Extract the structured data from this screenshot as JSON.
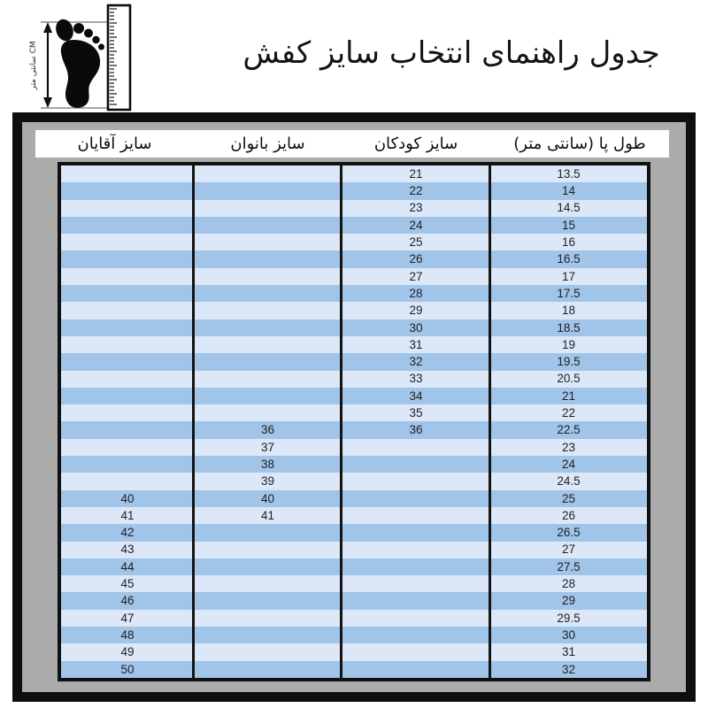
{
  "header": {
    "title": "جدول راهنمای انتخاب سایز کفش"
  },
  "icon": {
    "name": "foot-measure-icon",
    "measure_label": "CM سانتی متر"
  },
  "colors": {
    "row_light": "#dce8f8",
    "row_dark": "#a1c4e9",
    "frame_bg": "#ababab",
    "border": "#111111",
    "cell_text": "#1f1f1f"
  },
  "chart_data": {
    "type": "table",
    "title": "جدول راهنمای انتخاب سایز کفش",
    "columns": [
      "طول پا (سانتی متر)",
      "سایز کودکان",
      "سایز بانوان",
      "سایز آقایان"
    ],
    "column_keys": [
      "foot_length_cm",
      "children_size",
      "women_size",
      "men_size"
    ],
    "layout_hints": {
      "direction": "rtl",
      "stripes": "alternating",
      "first_row": "light"
    },
    "rows": [
      [
        "13.5",
        "21",
        "",
        ""
      ],
      [
        "14",
        "22",
        "",
        ""
      ],
      [
        "14.5",
        "23",
        "",
        ""
      ],
      [
        "15",
        "24",
        "",
        ""
      ],
      [
        "16",
        "25",
        "",
        ""
      ],
      [
        "16.5",
        "26",
        "",
        ""
      ],
      [
        "17",
        "27",
        "",
        ""
      ],
      [
        "17.5",
        "28",
        "",
        ""
      ],
      [
        "18",
        "29",
        "",
        ""
      ],
      [
        "18.5",
        "30",
        "",
        ""
      ],
      [
        "19",
        "31",
        "",
        ""
      ],
      [
        "19.5",
        "32",
        "",
        ""
      ],
      [
        "20.5",
        "33",
        "",
        ""
      ],
      [
        "21",
        "34",
        "",
        ""
      ],
      [
        "22",
        "35",
        "",
        ""
      ],
      [
        "22.5",
        "36",
        "36",
        ""
      ],
      [
        "23",
        "",
        "37",
        ""
      ],
      [
        "24",
        "",
        "38",
        ""
      ],
      [
        "24.5",
        "",
        "39",
        ""
      ],
      [
        "25",
        "",
        "40",
        "40"
      ],
      [
        "26",
        "",
        "41",
        "41"
      ],
      [
        "26.5",
        "",
        "",
        "42"
      ],
      [
        "27",
        "",
        "",
        "43"
      ],
      [
        "27.5",
        "",
        "",
        "44"
      ],
      [
        "28",
        "",
        "",
        "45"
      ],
      [
        "29",
        "",
        "",
        "46"
      ],
      [
        "29.5",
        "",
        "",
        "47"
      ],
      [
        "30",
        "",
        "",
        "48"
      ],
      [
        "31",
        "",
        "",
        "49"
      ],
      [
        "32",
        "",
        "",
        "50"
      ]
    ]
  }
}
